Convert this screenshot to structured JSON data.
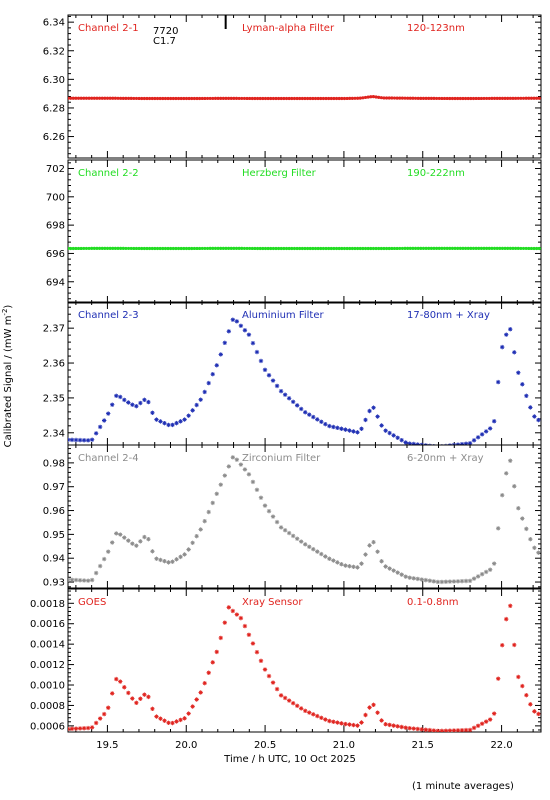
{
  "chart_data": [
    {
      "type": "scatter",
      "channel": "Channel 2-1",
      "filter": "Lyman-alpha Filter",
      "band": "120-123nm",
      "color": "#e0241f",
      "ylim": [
        6.245,
        6.345
      ],
      "yticks": [
        6.26,
        6.28,
        6.3,
        6.32,
        6.34
      ],
      "ytick_labels": [
        "6.26",
        "6.28",
        "6.30",
        "6.32",
        "6.34"
      ],
      "annotation": [
        "7720",
        "C1.7"
      ],
      "series": [
        {
          "x": [
            19.25,
            19.5,
            19.75,
            20.0,
            20.25,
            20.5,
            20.75,
            21.0,
            21.1,
            21.18,
            21.25,
            21.5,
            21.75,
            22.0,
            22.25
          ],
          "y": [
            6.2868,
            6.2868,
            6.2866,
            6.2866,
            6.2867,
            6.2866,
            6.2866,
            6.2866,
            6.2868,
            6.288,
            6.287,
            6.2867,
            6.2866,
            6.2867,
            6.2868
          ]
        }
      ]
    },
    {
      "type": "scatter",
      "channel": "Channel 2-2",
      "filter": "Herzberg Filter",
      "band": "190-222nm",
      "color": "#22dd22",
      "ylim": [
        692.5,
        702.6
      ],
      "yticks": [
        694,
        696,
        698,
        700,
        702
      ],
      "ytick_labels": [
        "694",
        "696",
        "698",
        "700",
        "702"
      ],
      "series": [
        {
          "x": [
            19.25,
            19.5,
            19.75,
            20.0,
            20.25,
            20.5,
            20.75,
            21.0,
            21.25,
            21.5,
            21.75,
            22.0,
            22.25
          ],
          "y": [
            696.35,
            696.36,
            696.35,
            696.35,
            696.36,
            696.35,
            696.35,
            696.35,
            696.35,
            696.36,
            696.36,
            696.36,
            696.35
          ]
        }
      ]
    },
    {
      "type": "scatter",
      "channel": "Channel 2-3",
      "filter": "Aluminium Filter",
      "band": "17-80nm + Xray",
      "color": "#1f2fb4",
      "ylim": [
        2.3365,
        2.3775
      ],
      "yticks": [
        2.34,
        2.35,
        2.36,
        2.37
      ],
      "ytick_labels": [
        "2.34",
        "2.35",
        "2.36",
        "2.37"
      ],
      "series": [
        {
          "x": [
            19.25,
            19.4,
            19.5,
            19.56,
            19.62,
            19.68,
            19.75,
            19.8,
            19.9,
            20.0,
            20.1,
            20.2,
            20.3,
            20.4,
            20.5,
            20.6,
            20.75,
            20.9,
            21.0,
            21.1,
            21.18,
            21.25,
            21.4,
            21.6,
            21.8,
            21.95,
            22.0,
            22.05,
            22.1,
            22.2,
            22.25
          ],
          "y": [
            2.338,
            2.3378,
            2.345,
            2.351,
            2.349,
            2.3475,
            2.35,
            2.344,
            2.342,
            2.344,
            2.35,
            2.36,
            2.373,
            2.368,
            2.358,
            2.352,
            2.346,
            2.342,
            2.341,
            2.34,
            2.348,
            2.341,
            2.337,
            2.336,
            2.337,
            2.342,
            2.364,
            2.371,
            2.358,
            2.345,
            2.343
          ]
        }
      ]
    },
    {
      "type": "scatter",
      "channel": "Channel 2-4",
      "filter": "Zirconium Filter",
      "band": "6-20nm + Xray",
      "color": "#8c8c8c",
      "ylim": [
        0.9275,
        0.9875
      ],
      "yticks": [
        0.93,
        0.94,
        0.95,
        0.96,
        0.97,
        0.98
      ],
      "ytick_labels": [
        "0.93",
        "0.94",
        "0.95",
        "0.96",
        "0.97",
        "0.98"
      ],
      "series": [
        {
          "x": [
            19.25,
            19.4,
            19.5,
            19.56,
            19.62,
            19.68,
            19.75,
            19.8,
            19.9,
            20.0,
            20.1,
            20.2,
            20.3,
            20.4,
            20.5,
            20.6,
            20.75,
            20.9,
            21.0,
            21.1,
            21.18,
            21.25,
            21.4,
            21.6,
            21.8,
            21.95,
            22.0,
            22.05,
            22.1,
            22.2,
            22.25
          ],
          "y": [
            0.931,
            0.9305,
            0.942,
            0.951,
            0.948,
            0.945,
            0.95,
            0.94,
            0.938,
            0.942,
            0.953,
            0.968,
            0.983,
            0.975,
            0.962,
            0.953,
            0.946,
            0.94,
            0.937,
            0.936,
            0.948,
            0.937,
            0.932,
            0.93,
            0.9305,
            0.936,
            0.965,
            0.983,
            0.962,
            0.945,
            0.941
          ]
        }
      ]
    },
    {
      "type": "scatter",
      "channel": "GOES",
      "filter": "Xray Sensor",
      "band": "0.1-0.8nm",
      "color": "#e0241f",
      "ylim": [
        0.00054,
        0.00194
      ],
      "yticks": [
        0.0006,
        0.0008,
        0.001,
        0.0012,
        0.0014,
        0.0016,
        0.0018
      ],
      "ytick_labels": [
        "0.0006",
        "0.0008",
        "0.0010",
        "0.0012",
        "0.0014",
        "0.0016",
        "0.0018"
      ],
      "series": [
        {
          "x": [
            19.25,
            19.4,
            19.5,
            19.56,
            19.62,
            19.68,
            19.75,
            19.8,
            19.9,
            20.0,
            20.1,
            20.2,
            20.27,
            20.35,
            20.5,
            20.6,
            20.75,
            20.9,
            21.0,
            21.1,
            21.18,
            21.25,
            21.4,
            21.6,
            21.8,
            21.95,
            22.0,
            22.05,
            22.1,
            22.2,
            22.25
          ],
          "y": [
            0.00057,
            0.00058,
            0.00075,
            0.00108,
            0.00095,
            0.00082,
            0.00093,
            0.0007,
            0.00062,
            0.00068,
            0.00095,
            0.00135,
            0.00176,
            0.00165,
            0.00115,
            0.0009,
            0.00075,
            0.00065,
            0.00062,
            0.0006,
            0.00083,
            0.00062,
            0.00058,
            0.00055,
            0.00056,
            0.00068,
            0.00135,
            0.00185,
            0.0011,
            0.00075,
            0.0007
          ]
        }
      ]
    }
  ],
  "x_axis": {
    "xlim": [
      19.25,
      22.25
    ],
    "ticks": [
      19.5,
      20.0,
      20.5,
      21.0,
      21.5,
      22.0
    ],
    "tick_labels": [
      "19.5",
      "20.0",
      "20.5",
      "21.0",
      "21.5",
      "22.0"
    ],
    "label": "Time / h UTC, 10 Oct 2025"
  },
  "y_axis": {
    "label": "Calibrated Signal / (mW m",
    "label_superscript": "-2",
    "label_tail": ")"
  },
  "flare_marker_x": 20.25,
  "footnote": "(1 minute averages)"
}
